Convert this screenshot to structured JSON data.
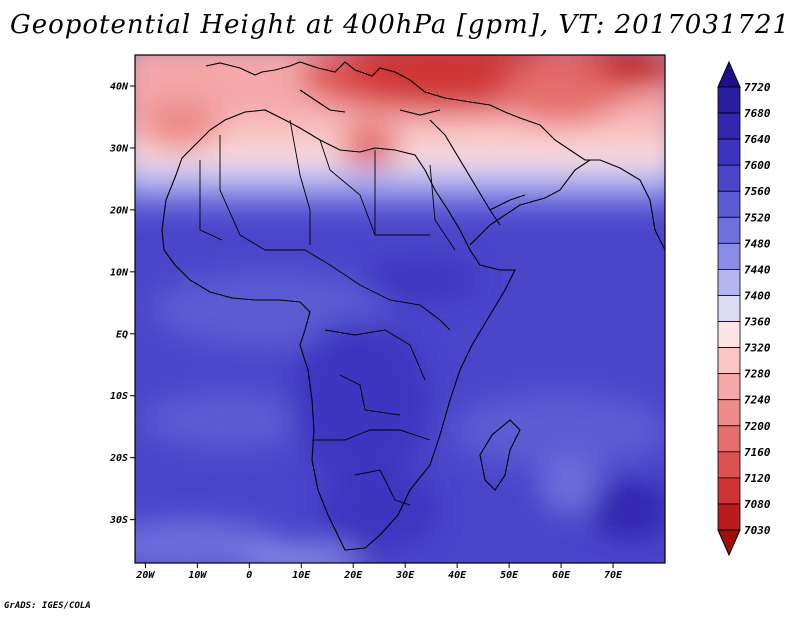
{
  "title": "Geopotential Height at 400hPa [gpm], VT: 2017031721",
  "footer": "GrADS: IGES/COLA",
  "map": {
    "lon_range": [
      -22,
      80
    ],
    "lat_range": [
      -37,
      45
    ],
    "lat_ticks": [
      {
        "value": 40,
        "label": "40N"
      },
      {
        "value": 30,
        "label": "30N"
      },
      {
        "value": 20,
        "label": "20N"
      },
      {
        "value": 10,
        "label": "10N"
      },
      {
        "value": 0,
        "label": "EQ"
      },
      {
        "value": -10,
        "label": "10S"
      },
      {
        "value": -20,
        "label": "20S"
      },
      {
        "value": -30,
        "label": "30S"
      }
    ],
    "lon_ticks": [
      {
        "value": -20,
        "label": "20W"
      },
      {
        "value": -10,
        "label": "10W"
      },
      {
        "value": 0,
        "label": "0"
      },
      {
        "value": 10,
        "label": "10E"
      },
      {
        "value": 20,
        "label": "20E"
      },
      {
        "value": 30,
        "label": "30E"
      },
      {
        "value": 40,
        "label": "40E"
      },
      {
        "value": 50,
        "label": "50E"
      },
      {
        "value": 60,
        "label": "60E"
      },
      {
        "value": 70,
        "label": "70E"
      }
    ]
  },
  "colorbar": {
    "levels": [
      "7720",
      "7680",
      "7640",
      "7600",
      "7560",
      "7520",
      "7480",
      "7440",
      "7400",
      "7360",
      "7320",
      "7280",
      "7240",
      "7200",
      "7160",
      "7120",
      "7080",
      "7030"
    ],
    "colors": [
      "#1e0f8c",
      "#2a1fa0",
      "#3327b0",
      "#3c34c0",
      "#4a45c9",
      "#5b5bd3",
      "#6e70dd",
      "#8a8ce6",
      "#b4b6f1",
      "#dcdcf7",
      "#fde3e3",
      "#f9c5c5",
      "#f4a8a8",
      "#ee8c8c",
      "#e56e6e",
      "#dc5252",
      "#cf3434",
      "#b81c1c",
      "#a00e0e"
    ]
  },
  "chart_data": {
    "type": "heatmap",
    "title": "Geopotential Height at 400hPa [gpm], VT: 2017031721",
    "variable": "Geopotential Height",
    "level": "400hPa",
    "units": "gpm",
    "valid_time": "2017031721",
    "xlim": [
      -22,
      80
    ],
    "ylim": [
      -37,
      45
    ],
    "color_levels": [
      7030,
      7080,
      7120,
      7160,
      7200,
      7240,
      7280,
      7320,
      7360,
      7400,
      7440,
      7480,
      7520,
      7560,
      7600,
      7640,
      7680,
      7720
    ],
    "regions": [
      {
        "lat": 40,
        "lon": 35,
        "value": 7120
      },
      {
        "lat": 42,
        "lon": 75,
        "value": 7100
      },
      {
        "lat": 33,
        "lon": -12,
        "value": 7260
      },
      {
        "lat": 30,
        "lon": 22,
        "value": 7230
      },
      {
        "lat": 25,
        "lon": 20,
        "value": 7400
      },
      {
        "lat": 15,
        "lon": 20,
        "value": 7520
      },
      {
        "lat": 0,
        "lon": 20,
        "value": 7600
      },
      {
        "lat": -15,
        "lon": 25,
        "value": 7640
      },
      {
        "lat": -25,
        "lon": 65,
        "value": 7620
      },
      {
        "lat": -33,
        "lon": 75,
        "value": 7680
      },
      {
        "lat": -35,
        "lon": 0,
        "value": 7520
      }
    ]
  }
}
